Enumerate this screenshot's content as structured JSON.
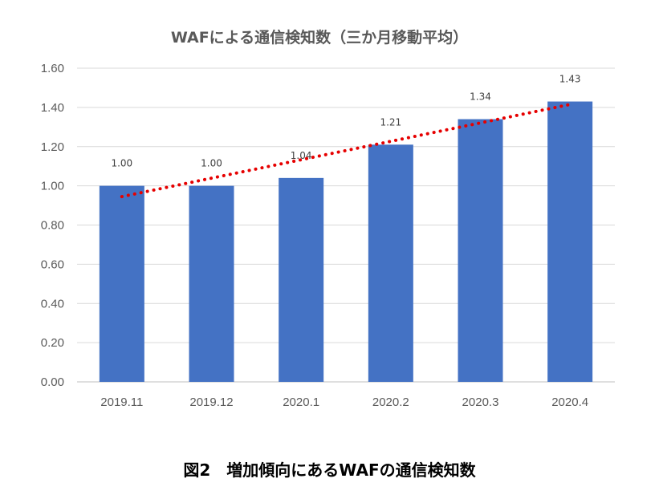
{
  "chart_data": {
    "type": "bar",
    "title": "WAFによる通信検知数（三か月移動平均）",
    "categories": [
      "2019.11",
      "2019.12",
      "2020.1",
      "2020.2",
      "2020.3",
      "2020.4"
    ],
    "values": [
      1.0,
      1.0,
      1.04,
      1.21,
      1.34,
      1.43
    ],
    "data_labels": [
      "1.00",
      "1.00",
      "1.04",
      "1.21",
      "1.34",
      "1.43"
    ],
    "ylim": [
      0,
      1.6
    ],
    "yticks": [
      0,
      0.2,
      0.4,
      0.6,
      0.8,
      1.0,
      1.2,
      1.4,
      1.6
    ],
    "ytick_labels": [
      "0.00",
      "0.20",
      "0.40",
      "0.60",
      "0.80",
      "1.00",
      "1.20",
      "1.40",
      "1.60"
    ],
    "grid": true,
    "legend": "none",
    "trendline": {
      "type": "linear",
      "style": "dotted",
      "start": 0.945,
      "end": 1.415
    },
    "colors": {
      "bar": "#4472c4",
      "trendline": "#e60000",
      "grid": "#d9d9d9",
      "axis": "#bfbfbf"
    }
  },
  "caption": "図2　増加傾向にあるWAFの通信検知数"
}
